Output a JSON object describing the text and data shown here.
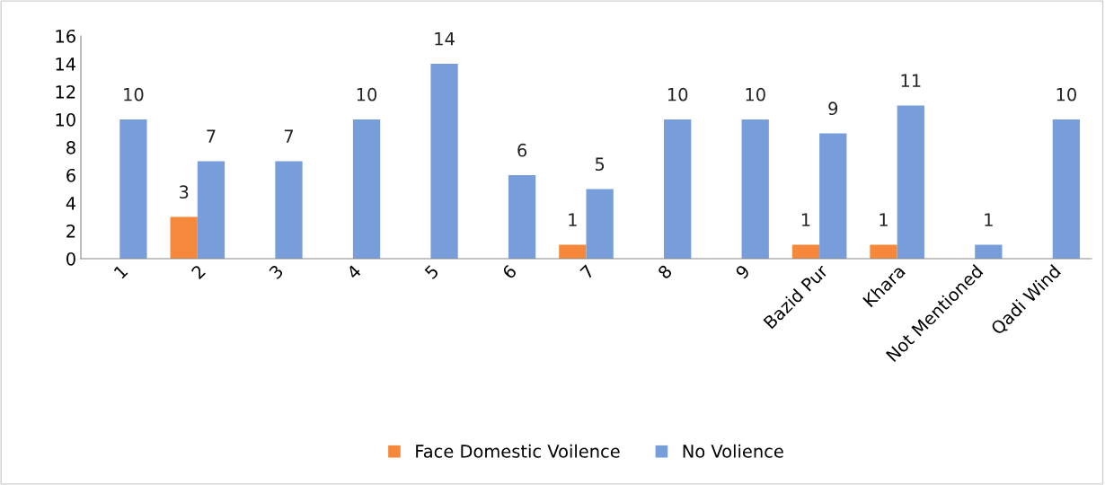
{
  "chart_data": {
    "type": "bar",
    "categories": [
      "1",
      "2",
      "3",
      "4",
      "5",
      "6",
      "7",
      "8",
      "9",
      "Bazid Pur",
      "Khara",
      "Not Mentioned",
      "Qadi Wind"
    ],
    "series": [
      {
        "name": "Face Domestic Voilence",
        "color": "#f5883a",
        "values": [
          null,
          3,
          null,
          null,
          null,
          null,
          1,
          null,
          null,
          1,
          1,
          null,
          null
        ]
      },
      {
        "name": "No Volience",
        "color": "#779ddb",
        "values": [
          10,
          7,
          7,
          10,
          14,
          6,
          5,
          10,
          10,
          9,
          11,
          1,
          10
        ]
      }
    ],
    "ylim": [
      0,
      16
    ],
    "yticks": [
      0,
      2,
      4,
      6,
      8,
      10,
      12,
      14,
      16
    ],
    "grid": false,
    "legend": "bottom",
    "data_labels": true
  }
}
